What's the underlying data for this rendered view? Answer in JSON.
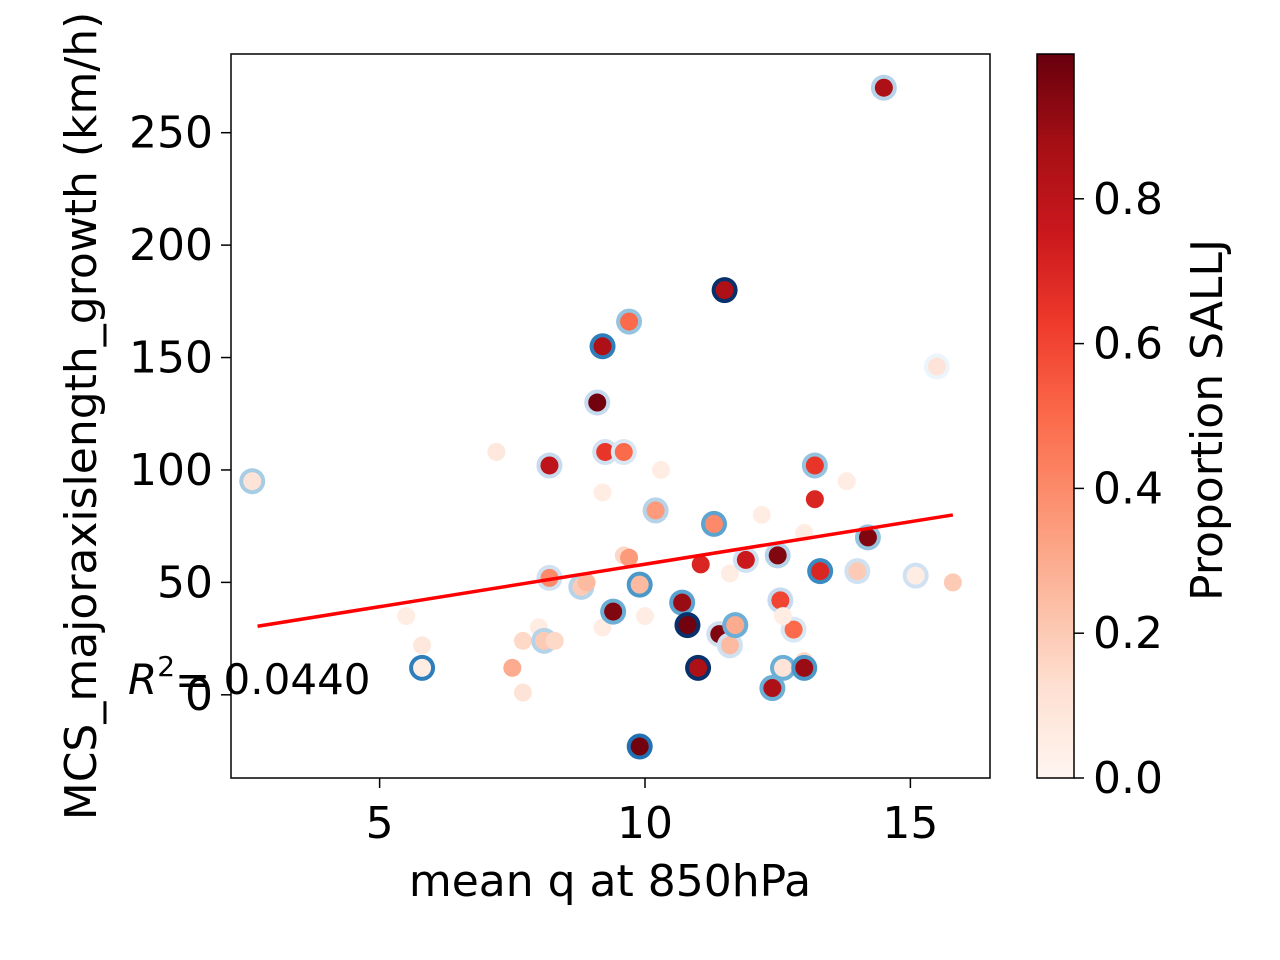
{
  "chart_data": {
    "type": "scatter",
    "title": "",
    "xlabel": "mean q at 850hPa",
    "ylabel": "MCS_majoraxislength_growth (km/h)",
    "xlim": [
      2.2,
      16.5
    ],
    "ylim": [
      -37,
      285
    ],
    "x_ticks": [
      5,
      10,
      15
    ],
    "y_ticks": [
      0,
      50,
      100,
      150,
      200,
      250
    ],
    "grid": false,
    "annotation": {
      "text_prefix": "R",
      "text_sup": "2",
      "text_value": "= 0.0440"
    },
    "colorbar": {
      "label": "Proportion SALLJ",
      "range": [
        0,
        1
      ],
      "ticks": [
        "0.0",
        "0.2",
        "0.4",
        "0.6",
        "0.8"
      ],
      "colormap": "Reds"
    },
    "regression_line": {
      "x": [
        2.7,
        15.8
      ],
      "y": [
        30.5,
        80
      ],
      "color": "#ff0000"
    },
    "points": [
      {
        "x": 2.6,
        "y": 95,
        "c": 0.1,
        "ring": 0.35
      },
      {
        "x": 5.8,
        "y": 12,
        "c": 0.05,
        "ring": 0.7
      },
      {
        "x": 5.5,
        "y": 35,
        "c": 0.05,
        "ring": null
      },
      {
        "x": 5.8,
        "y": 22,
        "c": 0.08,
        "ring": null
      },
      {
        "x": 7.2,
        "y": 108,
        "c": 0.08,
        "ring": null
      },
      {
        "x": 7.5,
        "y": 12,
        "c": 0.3,
        "ring": null
      },
      {
        "x": 7.7,
        "y": 1,
        "c": 0.1,
        "ring": null
      },
      {
        "x": 7.7,
        "y": 24,
        "c": 0.15,
        "ring": null
      },
      {
        "x": 8.0,
        "y": 30,
        "c": 0.05,
        "ring": null
      },
      {
        "x": 8.1,
        "y": 24,
        "c": 0.2,
        "ring": 0.3
      },
      {
        "x": 8.3,
        "y": 24,
        "c": 0.15,
        "ring": null
      },
      {
        "x": 8.2,
        "y": 102,
        "c": 0.8,
        "ring": 0.25
      },
      {
        "x": 8.2,
        "y": 52,
        "c": 0.4,
        "ring": 0.2
      },
      {
        "x": 8.8,
        "y": 48,
        "c": 0.2,
        "ring": 0.3
      },
      {
        "x": 8.9,
        "y": 50,
        "c": 0.25,
        "ring": null
      },
      {
        "x": 9.1,
        "y": 130,
        "c": 0.98,
        "ring": 0.25
      },
      {
        "x": 9.2,
        "y": 90,
        "c": 0.05,
        "ring": null
      },
      {
        "x": 9.2,
        "y": 30,
        "c": 0.05,
        "ring": null
      },
      {
        "x": 9.2,
        "y": 155,
        "c": 0.85,
        "ring": 0.7
      },
      {
        "x": 9.25,
        "y": 108,
        "c": 0.65,
        "ring": 0.2
      },
      {
        "x": 9.4,
        "y": 37,
        "c": 0.95,
        "ring": 0.5
      },
      {
        "x": 9.6,
        "y": 108,
        "c": 0.5,
        "ring": 0.15
      },
      {
        "x": 9.6,
        "y": 62,
        "c": 0.15,
        "ring": null
      },
      {
        "x": 9.7,
        "y": 61,
        "c": 0.35,
        "ring": null
      },
      {
        "x": 9.7,
        "y": 166,
        "c": 0.5,
        "ring": 0.4
      },
      {
        "x": 9.9,
        "y": 49,
        "c": 0.25,
        "ring": 0.6
      },
      {
        "x": 9.9,
        "y": -23,
        "c": 0.98,
        "ring": 0.75
      },
      {
        "x": 10.0,
        "y": 35,
        "c": 0.05,
        "ring": null
      },
      {
        "x": 10.2,
        "y": 82,
        "c": 0.35,
        "ring": 0.3
      },
      {
        "x": 10.3,
        "y": 100,
        "c": 0.05,
        "ring": null
      },
      {
        "x": 10.7,
        "y": 41,
        "c": 0.9,
        "ring": 0.55
      },
      {
        "x": 10.8,
        "y": 31,
        "c": 0.98,
        "ring": 1.0
      },
      {
        "x": 11.0,
        "y": 12,
        "c": 0.85,
        "ring": 1.0
      },
      {
        "x": 11.05,
        "y": 58,
        "c": 0.7,
        "ring": null
      },
      {
        "x": 11.3,
        "y": 76,
        "c": 0.4,
        "ring": 0.55
      },
      {
        "x": 11.4,
        "y": 27,
        "c": 0.95,
        "ring": 0.2
      },
      {
        "x": 11.5,
        "y": 180,
        "c": 0.85,
        "ring": 1.0
      },
      {
        "x": 11.6,
        "y": 22,
        "c": 0.25,
        "ring": 0.2
      },
      {
        "x": 11.6,
        "y": 54,
        "c": 0.05,
        "ring": null
      },
      {
        "x": 11.7,
        "y": 31,
        "c": 0.3,
        "ring": 0.5
      },
      {
        "x": 11.9,
        "y": 60,
        "c": 0.75,
        "ring": 0.2
      },
      {
        "x": 12.2,
        "y": 80,
        "c": 0.05,
        "ring": null
      },
      {
        "x": 12.4,
        "y": 3,
        "c": 0.85,
        "ring": 0.5
      },
      {
        "x": 12.5,
        "y": 62,
        "c": 0.95,
        "ring": 0.3
      },
      {
        "x": 12.55,
        "y": 42,
        "c": 0.6,
        "ring": 0.25
      },
      {
        "x": 12.6,
        "y": 12,
        "c": 0.1,
        "ring": 0.5
      },
      {
        "x": 12.8,
        "y": 29,
        "c": 0.5,
        "ring": 0.15
      },
      {
        "x": 12.6,
        "y": 35,
        "c": 0.05,
        "ring": null
      },
      {
        "x": 13.0,
        "y": 72,
        "c": 0.05,
        "ring": null
      },
      {
        "x": 13.0,
        "y": 15,
        "c": 0.15,
        "ring": null
      },
      {
        "x": 13.0,
        "y": 12,
        "c": 0.9,
        "ring": 0.6
      },
      {
        "x": 13.2,
        "y": 102,
        "c": 0.65,
        "ring": 0.4
      },
      {
        "x": 13.2,
        "y": 87,
        "c": 0.7,
        "ring": null
      },
      {
        "x": 13.3,
        "y": 55,
        "c": 0.7,
        "ring": 0.65
      },
      {
        "x": 13.8,
        "y": 95,
        "c": 0.05,
        "ring": null
      },
      {
        "x": 14.0,
        "y": 55,
        "c": 0.2,
        "ring": 0.2
      },
      {
        "x": 14.2,
        "y": 70,
        "c": 0.95,
        "ring": 0.4
      },
      {
        "x": 14.5,
        "y": 270,
        "c": 0.85,
        "ring": 0.3
      },
      {
        "x": 15.1,
        "y": 53,
        "c": 0.05,
        "ring": 0.2
      },
      {
        "x": 15.5,
        "y": 146,
        "c": 0.1,
        "ring": 0.05
      },
      {
        "x": 15.8,
        "y": 50,
        "c": 0.2,
        "ring": null
      }
    ]
  }
}
